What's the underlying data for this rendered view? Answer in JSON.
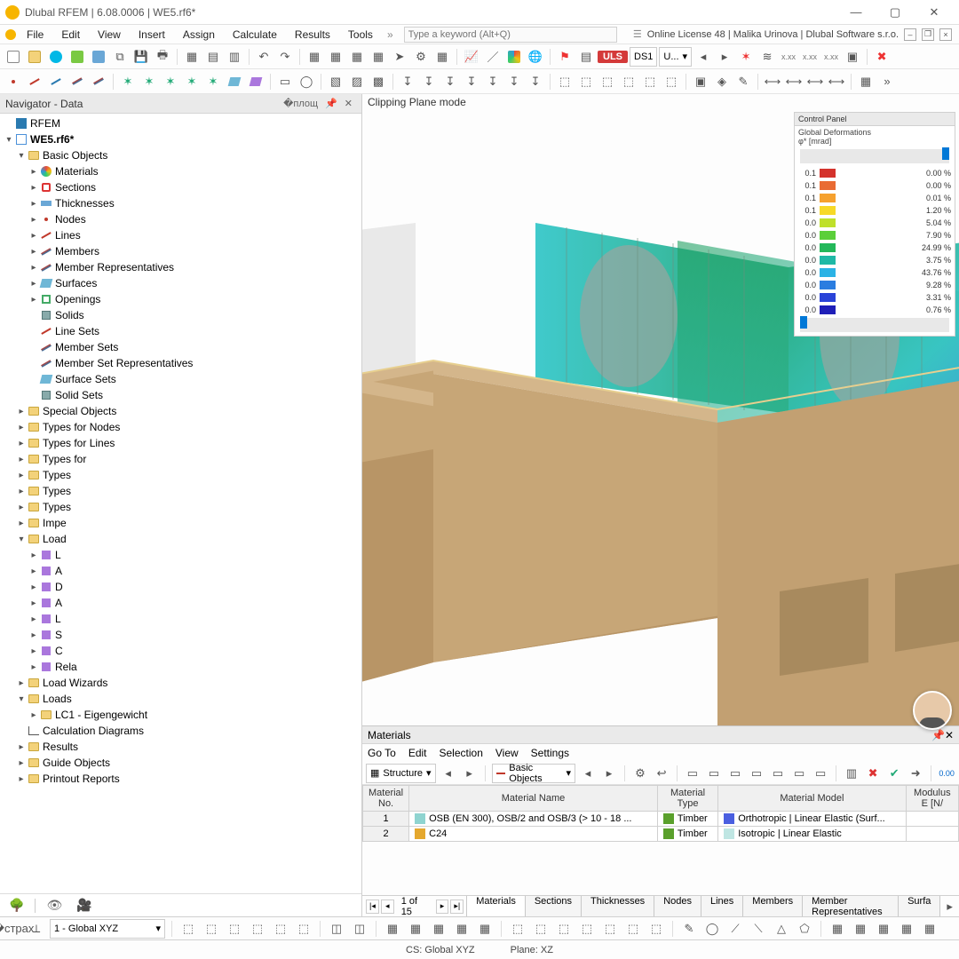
{
  "title": "Dlubal RFEM | 6.08.0006 | WE5.rf6*",
  "license_text": "Online License 48 | Malika Urinova | Dlubal Software s.r.o.",
  "menu": [
    "File",
    "Edit",
    "View",
    "Insert",
    "Assign",
    "Calculate",
    "Results",
    "Tools"
  ],
  "search_placeholder": "Type a keyword (Alt+Q)",
  "toolbar2": {
    "uls": "ULS",
    "combo": "DS1",
    "u_dd": "U..."
  },
  "navigator": {
    "title": "Navigator - Data",
    "root": "RFEM",
    "project": "WE5.rf6*",
    "basic_objects": "Basic Objects",
    "items": [
      {
        "label": "Materials",
        "icon": "mat"
      },
      {
        "label": "Sections",
        "icon": "sect"
      },
      {
        "label": "Thicknesses",
        "icon": "thick"
      },
      {
        "label": "Nodes",
        "icon": "node"
      },
      {
        "label": "Lines",
        "icon": "line"
      },
      {
        "label": "Members",
        "icon": "member"
      },
      {
        "label": "Member Representatives",
        "icon": "member"
      },
      {
        "label": "Surfaces",
        "icon": "surf"
      },
      {
        "label": "Openings",
        "icon": "open"
      },
      {
        "label": "Solids",
        "icon": "solid"
      },
      {
        "label": "Line Sets",
        "icon": "line"
      },
      {
        "label": "Member Sets",
        "icon": "member"
      },
      {
        "label": "Member Set Representatives",
        "icon": "member"
      },
      {
        "label": "Surface Sets",
        "icon": "surf"
      },
      {
        "label": "Solid Sets",
        "icon": "solid"
      }
    ],
    "groups": [
      "Special Objects",
      "Types for Nodes",
      "Types for Lines",
      "Types for",
      "Types",
      "Types",
      "Types",
      "Impe",
      "Load"
    ],
    "load_children": [
      "L",
      "A",
      "D",
      "A",
      "L",
      "S",
      "C",
      "Rela"
    ],
    "tail": [
      "Load Wizards"
    ],
    "loads": "Loads",
    "lc1": "LC1 - Eigengewicht",
    "calc_diag": "Calculation Diagrams",
    "more": [
      "Results",
      "Guide Objects",
      "Printout Reports"
    ]
  },
  "viewport": {
    "mode_label": "Clipping Plane mode",
    "wall_color": "#c7a677",
    "wall_shadow": "#b69468",
    "contour_colors": [
      "#20a060",
      "#2fb8a0",
      "#36c7c9",
      "#3aa0d8",
      "#3a6fd0"
    ]
  },
  "control_panel": {
    "title": "Control Panel",
    "subtitle": "Global Deformations\nφ* [mrad]",
    "rows": [
      {
        "v": "0.1",
        "c": "#d4322c",
        "p": "0.00 %"
      },
      {
        "v": "0.1",
        "c": "#e96b33",
        "p": "0.00 %"
      },
      {
        "v": "0.1",
        "c": "#f6a12e",
        "p": "0.01 %"
      },
      {
        "v": "0.1",
        "c": "#f7d927",
        "p": "1.20 %"
      },
      {
        "v": "0.0",
        "c": "#bfe02b",
        "p": "5.04 %"
      },
      {
        "v": "0.0",
        "c": "#5bcf3a",
        "p": "7.90 %"
      },
      {
        "v": "0.0",
        "c": "#23b85a",
        "p": "24.99 %"
      },
      {
        "v": "0.0",
        "c": "#1fb9a6",
        "p": "3.75 %"
      },
      {
        "v": "0.0",
        "c": "#2bb3e5",
        "p": "43.76 %"
      },
      {
        "v": "0.0",
        "c": "#2a7de0",
        "p": "9.28 %"
      },
      {
        "v": "0.0",
        "c": "#2a43d8",
        "p": "3.31 %"
      },
      {
        "v": "0.0",
        "c": "#1f1fb8",
        "p": "0.76 %"
      }
    ]
  },
  "materials_panel": {
    "title": "Materials",
    "menu": [
      "Go To",
      "Edit",
      "Selection",
      "View",
      "Settings"
    ],
    "structure_dd": "Structure",
    "basic_dd": "Basic Objects",
    "cols": [
      "Material\nNo.",
      "Material Name",
      "Material\nType",
      "Material Model",
      "Modulus\nE [N/"
    ],
    "rows": [
      {
        "no": "1",
        "name": "OSB (EN 300), OSB/2 and OSB/3 (> 10 - 18 ...",
        "name_c": "#8fd4d0",
        "type": "Timber",
        "type_c": "#5aa02c",
        "model": "Orthotropic | Linear Elastic (Surf...",
        "model_c": "#4a5fe0"
      },
      {
        "no": "2",
        "name": "C24",
        "name_c": "#e5a82e",
        "type": "Timber",
        "type_c": "#5aa02c",
        "model": "Isotropic | Linear Elastic",
        "model_c": "#bfe6e3"
      }
    ],
    "pager": "1 of 15",
    "tabs": [
      "Materials",
      "Sections",
      "Thicknesses",
      "Nodes",
      "Lines",
      "Members",
      "Member Representatives",
      "Surfa"
    ]
  },
  "statusbar": {
    "cs_dd": "1 - Global XYZ",
    "cs_label": "CS: Global XYZ",
    "plane_label": "Plane: XZ"
  }
}
